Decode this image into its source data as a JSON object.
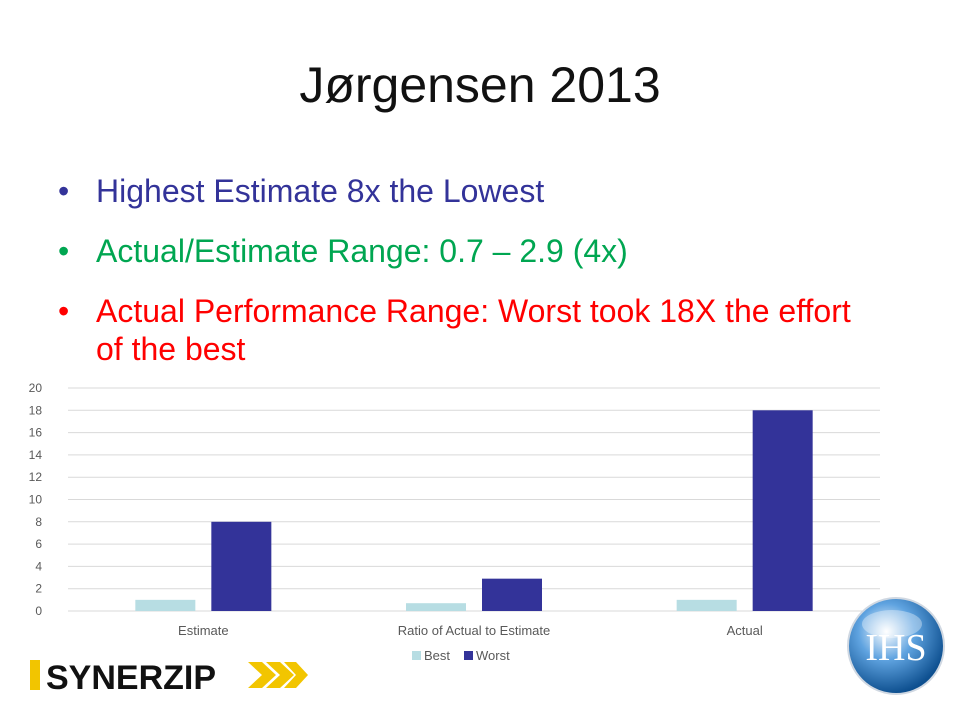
{
  "slide": {
    "title": "Jørgensen 2013",
    "bullets": [
      {
        "text": "Highest Estimate 8x the Lowest",
        "color": "#333399"
      },
      {
        "text": "Actual/Estimate Range:  0.7 – 2.9 (4x)",
        "color": "#00a651"
      },
      {
        "text": "Actual Performance Range: Worst took 18X the effort of the best",
        "color": "#ff0000"
      }
    ]
  },
  "chart_data": {
    "type": "bar",
    "categories": [
      "Estimate",
      "Ratio of Actual to Estimate",
      "Actual"
    ],
    "series": [
      {
        "name": "Best",
        "values": [
          1,
          0.7,
          1
        ],
        "color": "#b7dde3"
      },
      {
        "name": "Worst",
        "values": [
          8,
          2.9,
          18
        ],
        "color": "#333399"
      }
    ],
    "ylim": [
      0,
      20
    ],
    "yticks": [
      0,
      2,
      4,
      6,
      8,
      10,
      12,
      14,
      16,
      18,
      20
    ],
    "grid": true,
    "legend_position": "bottom",
    "title": "",
    "xlabel": "",
    "ylabel": ""
  },
  "logos": {
    "synerzip": {
      "text": "SYNERZIP",
      "accent": "#f2c500"
    },
    "ihs": {
      "text": "IHS",
      "color": "#1f6fb5"
    }
  }
}
